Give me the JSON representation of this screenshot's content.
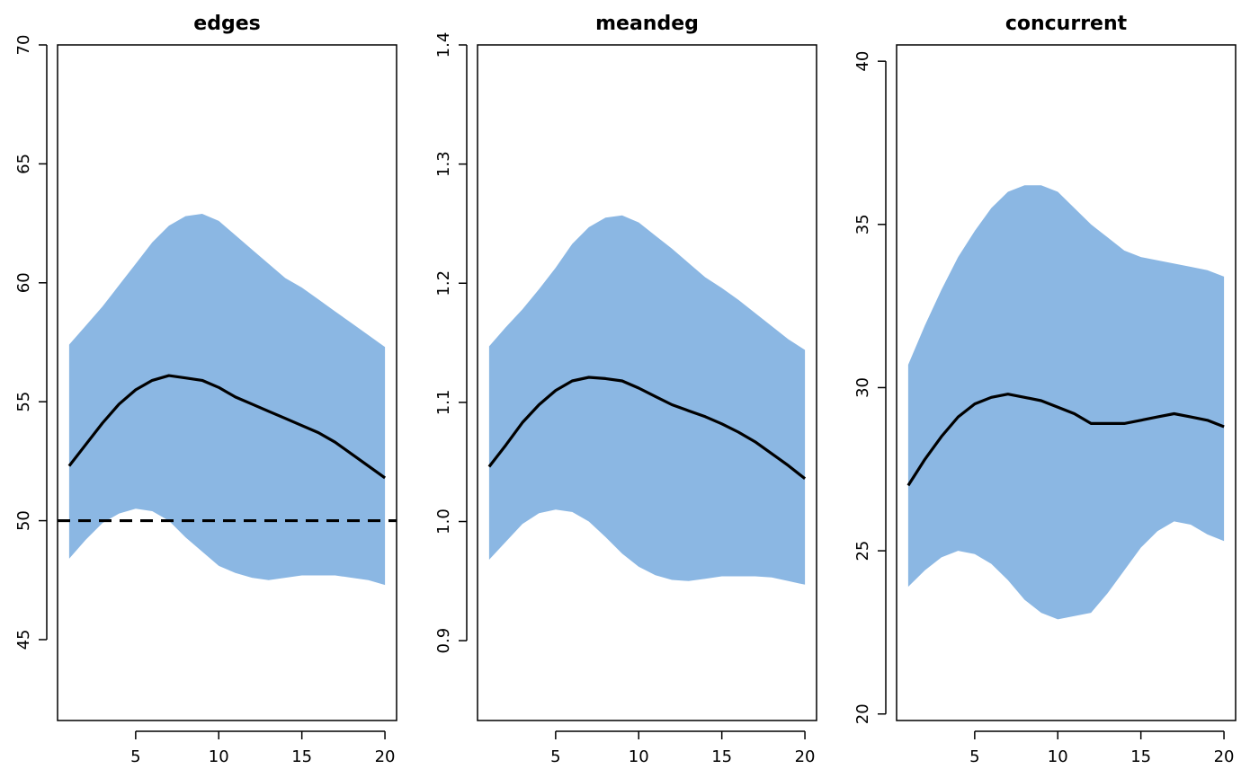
{
  "chart_data": [
    {
      "type": "area",
      "title": "edges",
      "xlim": [
        0.3,
        20.7
      ],
      "ylim": [
        41.6,
        70.0
      ],
      "xticks": [
        5,
        10,
        15,
        20
      ],
      "yticks": [
        45,
        50,
        55,
        60,
        65,
        70
      ],
      "x": [
        1,
        2,
        3,
        4,
        5,
        6,
        7,
        8,
        9,
        10,
        11,
        12,
        13,
        14,
        15,
        16,
        17,
        18,
        19,
        20
      ],
      "band_color": "#8bb7e3",
      "series": [
        {
          "role": "upper",
          "values": [
            57.4,
            58.2,
            59.0,
            59.9,
            60.8,
            61.7,
            62.4,
            62.8,
            62.9,
            62.6,
            62.0,
            61.4,
            60.8,
            60.2,
            59.8,
            59.3,
            58.8,
            58.3,
            57.8,
            57.3
          ]
        },
        {
          "role": "lower",
          "values": [
            48.4,
            49.2,
            49.9,
            50.3,
            50.5,
            50.4,
            50.0,
            49.3,
            48.7,
            48.1,
            47.8,
            47.6,
            47.5,
            47.6,
            47.7,
            47.7,
            47.7,
            47.6,
            47.5,
            47.3
          ]
        },
        {
          "role": "mean",
          "values": [
            52.3,
            53.2,
            54.1,
            54.9,
            55.5,
            55.9,
            56.1,
            56.0,
            55.9,
            55.6,
            55.2,
            54.9,
            54.6,
            54.3,
            54.0,
            53.7,
            53.3,
            52.8,
            52.3,
            51.8
          ]
        }
      ],
      "target": {
        "value": 50,
        "linestyle": "dashed"
      }
    },
    {
      "type": "area",
      "title": "meandeg",
      "xlim": [
        0.3,
        20.7
      ],
      "ylim": [
        0.833,
        1.4
      ],
      "xticks": [
        5,
        10,
        15,
        20
      ],
      "yticks": [
        0.9,
        1.0,
        1.1,
        1.2,
        1.3,
        1.4
      ],
      "x": [
        1,
        2,
        3,
        4,
        5,
        6,
        7,
        8,
        9,
        10,
        11,
        12,
        13,
        14,
        15,
        16,
        17,
        18,
        19,
        20
      ],
      "band_color": "#8bb7e3",
      "series": [
        {
          "role": "upper",
          "values": [
            1.147,
            1.163,
            1.178,
            1.195,
            1.213,
            1.233,
            1.247,
            1.255,
            1.257,
            1.251,
            1.24,
            1.229,
            1.217,
            1.205,
            1.196,
            1.186,
            1.175,
            1.164,
            1.153,
            1.144
          ]
        },
        {
          "role": "lower",
          "values": [
            0.968,
            0.983,
            0.998,
            1.007,
            1.01,
            1.008,
            1.0,
            0.987,
            0.973,
            0.962,
            0.955,
            0.951,
            0.95,
            0.952,
            0.954,
            0.954,
            0.954,
            0.953,
            0.95,
            0.947
          ]
        },
        {
          "role": "mean",
          "values": [
            1.046,
            1.064,
            1.083,
            1.098,
            1.11,
            1.118,
            1.121,
            1.12,
            1.118,
            1.112,
            1.105,
            1.098,
            1.093,
            1.088,
            1.082,
            1.075,
            1.067,
            1.057,
            1.047,
            1.036
          ]
        }
      ]
    },
    {
      "type": "area",
      "title": "concurrent",
      "xlim": [
        0.3,
        20.7
      ],
      "ylim": [
        19.8,
        40.5
      ],
      "xticks": [
        5,
        10,
        15,
        20
      ],
      "yticks": [
        20,
        25,
        30,
        35,
        40
      ],
      "x": [
        1,
        2,
        3,
        4,
        5,
        6,
        7,
        8,
        9,
        10,
        11,
        12,
        13,
        14,
        15,
        16,
        17,
        18,
        19,
        20
      ],
      "band_color": "#8bb7e3",
      "series": [
        {
          "role": "upper",
          "values": [
            30.7,
            31.9,
            33.0,
            34.0,
            34.8,
            35.5,
            36.0,
            36.2,
            36.2,
            36.0,
            35.5,
            35.0,
            34.6,
            34.2,
            34.0,
            33.9,
            33.8,
            33.7,
            33.6,
            33.4
          ]
        },
        {
          "role": "lower",
          "values": [
            23.9,
            24.4,
            24.8,
            25.0,
            24.9,
            24.6,
            24.1,
            23.5,
            23.1,
            22.9,
            23.0,
            23.1,
            23.7,
            24.4,
            25.1,
            25.6,
            25.9,
            25.8,
            25.5,
            25.3
          ]
        },
        {
          "role": "mean",
          "values": [
            27.0,
            27.8,
            28.5,
            29.1,
            29.5,
            29.7,
            29.8,
            29.7,
            29.6,
            29.4,
            29.2,
            28.9,
            28.9,
            28.9,
            29.0,
            29.1,
            29.2,
            29.1,
            29.0,
            28.8
          ]
        }
      ]
    }
  ]
}
